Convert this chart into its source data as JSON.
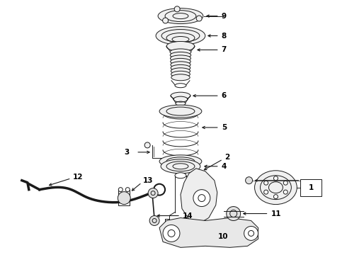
{
  "bg_color": "#ffffff",
  "line_color": "#1a1a1a",
  "label_color": "#000000",
  "lw": 0.7,
  "lw_thick": 1.5,
  "fs": 7.5,
  "fig_width": 4.9,
  "fig_height": 3.6,
  "dpi": 100
}
